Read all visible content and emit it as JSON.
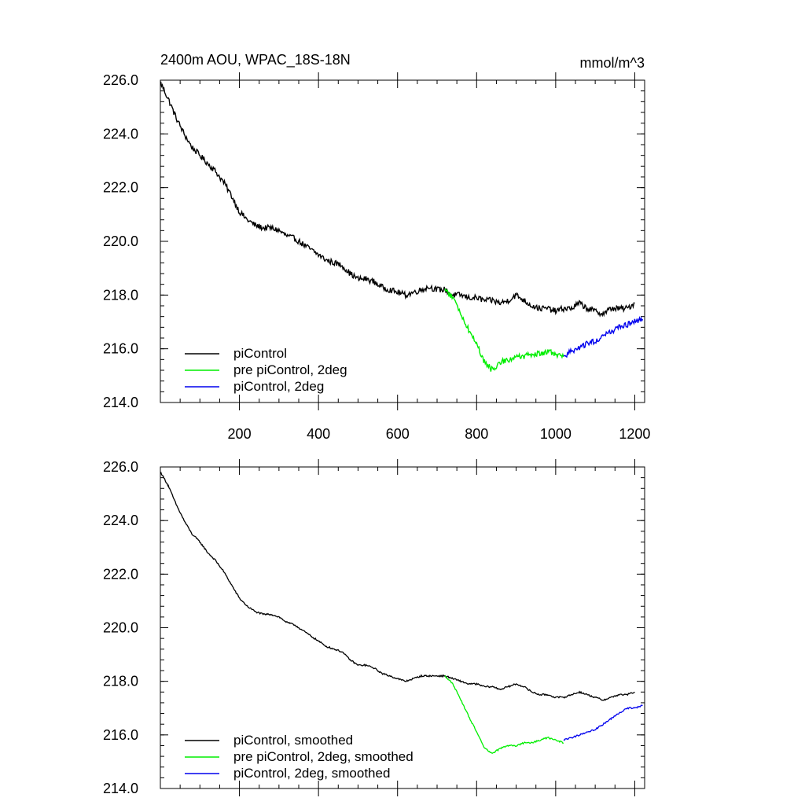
{
  "chart_data": [
    {
      "type": "line",
      "title": "2400m AOU, WPAC_18S-18N",
      "units": "mmol/m^3",
      "xlim": [
        0,
        1225
      ],
      "ylim": [
        214.0,
        226.0
      ],
      "xticks": [
        200,
        400,
        600,
        800,
        1000,
        1200
      ],
      "yticks": [
        "214.0",
        "216.0",
        "218.0",
        "220.0",
        "222.0",
        "224.0",
        "226.0"
      ],
      "legend_position": "bottom-left",
      "series": [
        {
          "name": "piControl",
          "color": "#000000",
          "x": [
            1,
            20,
            40,
            60,
            80,
            100,
            120,
            140,
            160,
            180,
            200,
            220,
            240,
            260,
            280,
            300,
            320,
            340,
            360,
            380,
            400,
            420,
            440,
            460,
            480,
            500,
            520,
            540,
            560,
            580,
            600,
            620,
            640,
            660,
            680,
            700,
            720,
            740,
            760,
            780,
            800,
            820,
            840,
            860,
            880,
            900,
            920,
            940,
            960,
            980,
            1000,
            1020,
            1040,
            1060,
            1080,
            1100,
            1120,
            1140,
            1160,
            1180,
            1200
          ],
          "y": [
            225.9,
            225.3,
            224.6,
            224.0,
            223.5,
            223.2,
            222.9,
            222.6,
            222.2,
            221.7,
            221.1,
            220.8,
            220.6,
            220.5,
            220.5,
            220.4,
            220.2,
            220.1,
            219.9,
            219.7,
            219.5,
            219.3,
            219.2,
            219.1,
            218.8,
            218.6,
            218.6,
            218.5,
            218.3,
            218.2,
            218.1,
            218.0,
            218.1,
            218.2,
            218.3,
            218.2,
            218.2,
            218.0,
            218.0,
            217.9,
            217.9,
            217.8,
            217.8,
            217.7,
            217.8,
            218.0,
            217.8,
            217.6,
            217.5,
            217.5,
            217.4,
            217.5,
            217.5,
            217.7,
            217.5,
            217.4,
            217.3,
            217.5,
            217.5,
            217.5,
            217.7
          ]
        },
        {
          "name": "pre piControl, 2deg",
          "color": "#00ee00",
          "x": [
            720,
            740,
            760,
            780,
            800,
            820,
            840,
            860,
            880,
            900,
            920,
            940,
            960,
            980,
            1000,
            1020
          ],
          "y": [
            218.2,
            217.9,
            217.3,
            216.7,
            216.2,
            215.5,
            215.2,
            215.5,
            215.6,
            215.7,
            215.7,
            215.8,
            215.8,
            215.9,
            215.8,
            215.7
          ]
        },
        {
          "name": "piControl, 2deg",
          "color": "#0000ee",
          "x": [
            1020,
            1040,
            1060,
            1080,
            1100,
            1120,
            1140,
            1160,
            1180,
            1200,
            1220
          ],
          "y": [
            215.7,
            215.9,
            216.0,
            216.2,
            216.3,
            216.5,
            216.6,
            216.8,
            216.9,
            217.0,
            217.1
          ]
        }
      ]
    },
    {
      "type": "line",
      "xlim": [
        0,
        1225
      ],
      "ylim": [
        214.0,
        226.0
      ],
      "yticks": [
        "214.0",
        "216.0",
        "218.0",
        "220.0",
        "222.0",
        "224.0",
        "226.0"
      ],
      "legend_position": "bottom-left",
      "series": [
        {
          "name": "piControl, smoothed",
          "color": "#000000",
          "x": [
            1,
            20,
            40,
            60,
            80,
            100,
            120,
            140,
            160,
            180,
            200,
            220,
            240,
            260,
            280,
            300,
            320,
            340,
            360,
            380,
            400,
            420,
            440,
            460,
            480,
            500,
            520,
            540,
            560,
            580,
            600,
            620,
            640,
            660,
            680,
            700,
            720,
            740,
            760,
            780,
            800,
            820,
            840,
            860,
            880,
            900,
            920,
            940,
            960,
            980,
            1000,
            1020,
            1040,
            1060,
            1080,
            1100,
            1120,
            1140,
            1160,
            1180,
            1200
          ],
          "y": [
            225.8,
            225.3,
            224.6,
            224.0,
            223.5,
            223.2,
            222.8,
            222.5,
            222.1,
            221.6,
            221.1,
            220.8,
            220.6,
            220.5,
            220.5,
            220.4,
            220.2,
            220.1,
            219.9,
            219.7,
            219.5,
            219.3,
            219.2,
            219.1,
            218.8,
            218.6,
            218.6,
            218.5,
            218.3,
            218.2,
            218.1,
            218.0,
            218.1,
            218.2,
            218.2,
            218.2,
            218.2,
            218.1,
            218.0,
            217.9,
            217.9,
            217.8,
            217.8,
            217.7,
            217.8,
            217.9,
            217.8,
            217.6,
            217.5,
            217.5,
            217.4,
            217.4,
            217.5,
            217.6,
            217.5,
            217.4,
            217.3,
            217.4,
            217.5,
            217.5,
            217.6
          ]
        },
        {
          "name": "pre piControl, 2deg, smoothed",
          "color": "#00ee00",
          "x": [
            720,
            740,
            760,
            780,
            800,
            820,
            840,
            860,
            880,
            900,
            920,
            940,
            960,
            980,
            1000,
            1020
          ],
          "y": [
            218.2,
            217.9,
            217.3,
            216.7,
            216.1,
            215.5,
            215.3,
            215.5,
            215.6,
            215.6,
            215.7,
            215.7,
            215.8,
            215.9,
            215.8,
            215.7
          ]
        },
        {
          "name": "piControl, 2deg, smoothed",
          "color": "#0000ee",
          "x": [
            1020,
            1040,
            1060,
            1080,
            1100,
            1120,
            1140,
            1160,
            1180,
            1200,
            1220
          ],
          "y": [
            215.8,
            215.9,
            216.0,
            216.1,
            216.2,
            216.4,
            216.6,
            216.8,
            217.0,
            217.0,
            217.1
          ]
        }
      ]
    }
  ]
}
